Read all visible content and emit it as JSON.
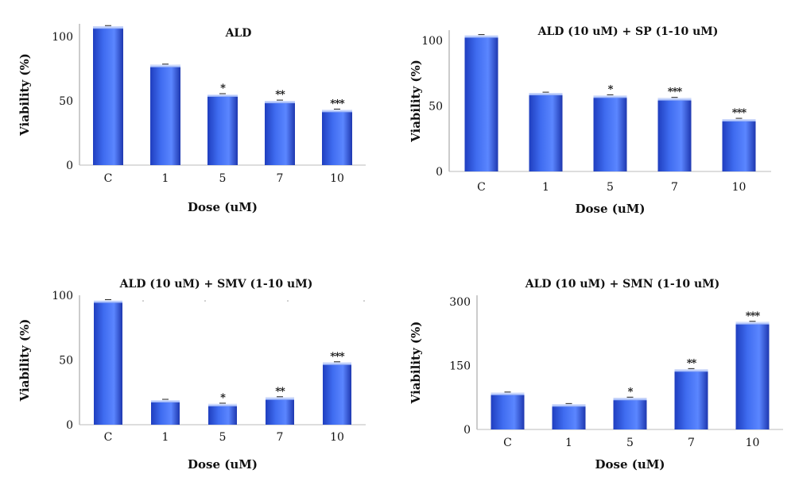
{
  "chart_data": [
    {
      "type": "bar",
      "title": "ALD",
      "xlabel": "Dose (uM)",
      "ylabel": "Viability (%)",
      "categories": [
        "C",
        "1",
        "5",
        "7",
        "10"
      ],
      "values": [
        108,
        78,
        55,
        50,
        43
      ],
      "significance": [
        "",
        "",
        "*",
        "**",
        "***"
      ],
      "yticks": [
        0,
        50,
        100
      ],
      "ylim": [
        0,
        110
      ],
      "grid": false,
      "colors": {
        "bar_dark": "#1f3ebf",
        "bar_mid": "#3f6cf0",
        "bar_light": "#a9c0ff"
      }
    },
    {
      "type": "bar",
      "title": "ALD (10 uM) + SP (1-10 uM)",
      "xlabel": "Dose (uM)",
      "ylabel": "Viability (%)",
      "categories": [
        "C",
        "1",
        "5",
        "7",
        "10"
      ],
      "values": [
        104,
        60,
        58,
        56,
        40
      ],
      "significance": [
        "",
        "",
        "*",
        "***",
        "***"
      ],
      "yticks": [
        0,
        50,
        100
      ],
      "ylim": [
        0,
        108
      ],
      "grid": false,
      "colors": {
        "bar_dark": "#1f3ebf",
        "bar_mid": "#3f6cf0",
        "bar_light": "#a9c0ff"
      }
    },
    {
      "type": "bar",
      "title": "ALD (10 uM) + SMV (1-10 uM)",
      "xlabel": "Dose (uM)",
      "ylabel": "Viability (%)",
      "categories": [
        "C",
        "1",
        "5",
        "7",
        "10"
      ],
      "values": [
        96,
        19,
        16,
        21,
        48
      ],
      "significance": [
        "",
        "",
        "*",
        "**",
        "***"
      ],
      "yticks": [
        0,
        50,
        100
      ],
      "ylim": [
        0,
        100
      ],
      "grid": false,
      "colors": {
        "bar_dark": "#1f3ebf",
        "bar_mid": "#3f6cf0",
        "bar_light": "#a9c0ff"
      }
    },
    {
      "type": "bar",
      "title": "ALD (10 uM) + SMN (1-10 uM)",
      "xlabel": "Dose (uM)",
      "ylabel": "Viability (%)",
      "categories": [
        "C",
        "1",
        "5",
        "7",
        "10"
      ],
      "values": [
        86,
        59,
        74,
        141,
        252
      ],
      "significance": [
        "",
        "",
        "*",
        "**",
        "***"
      ],
      "yticks": [
        0,
        150,
        300
      ],
      "ylim": [
        0,
        315
      ],
      "grid": false,
      "colors": {
        "bar_dark": "#1f3ebf",
        "bar_mid": "#3f6cf0",
        "bar_light": "#a9c0ff"
      }
    }
  ]
}
